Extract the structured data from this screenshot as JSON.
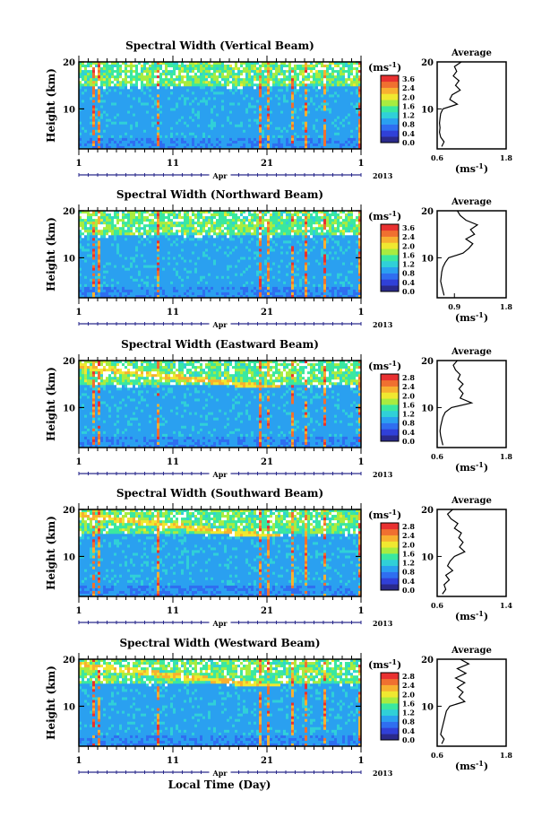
{
  "chart_data": [
    {
      "type": "heatmap",
      "title": "Spectral Width (Vertical Beam)",
      "ylabel": "Height (km)",
      "x_ticks": [
        "1",
        "11",
        "21",
        "1"
      ],
      "month_label": "Apr",
      "year": "2013",
      "ylim": [
        1.5,
        20
      ],
      "y_ticks": [
        "20",
        "10"
      ],
      "colorbar": {
        "unit_label": "(ms-1)",
        "ticks": [
          "3.6",
          "2.4",
          "2.0",
          "1.6",
          "1.2",
          "0.8",
          "0.4",
          "0.0"
        ]
      },
      "average_profile": {
        "title": "Average",
        "xlabel": "(ms-1)",
        "x_ticks": [
          "0.6",
          "1.8"
        ],
        "xlim": [
          0.6,
          1.8
        ],
        "y_ticks": [
          "20",
          "10"
        ],
        "heights": [
          2,
          3,
          4,
          5,
          6,
          7,
          8,
          9,
          10,
          11,
          12,
          13,
          14,
          15,
          16,
          17,
          18,
          19,
          20
        ],
        "values": [
          0.68,
          0.72,
          0.66,
          0.64,
          0.65,
          0.64,
          0.65,
          0.66,
          0.7,
          0.95,
          0.82,
          0.86,
          1.0,
          0.92,
          0.98,
          0.88,
          0.94,
          0.9,
          1.02
        ]
      }
    },
    {
      "type": "heatmap",
      "title": "Spectral Width (Northward Beam)",
      "ylabel": "Height (km)",
      "x_ticks": [
        "1",
        "11",
        "21",
        "1"
      ],
      "month_label": "Apr",
      "year": "2013",
      "ylim": [
        1.5,
        20
      ],
      "y_ticks": [
        "20",
        "10"
      ],
      "colorbar": {
        "unit_label": "(ms-1)",
        "ticks": [
          "3.6",
          "2.4",
          "2.0",
          "1.6",
          "1.2",
          "0.8",
          "0.4",
          "0.0"
        ]
      },
      "average_profile": {
        "title": "Average",
        "xlabel": "(ms-1)",
        "x_ticks": [
          "0.9",
          "1.8"
        ],
        "xlim": [
          0.6,
          1.8
        ],
        "y_ticks": [
          "20",
          "10"
        ],
        "heights": [
          2,
          3,
          4,
          5,
          6,
          7,
          8,
          9,
          10,
          11,
          12,
          13,
          14,
          15,
          16,
          17,
          18,
          19,
          20
        ],
        "values": [
          0.72,
          0.7,
          0.68,
          0.66,
          0.67,
          0.68,
          0.7,
          0.74,
          0.8,
          1.05,
          1.15,
          1.22,
          1.1,
          1.25,
          1.18,
          1.3,
          1.1,
          1.0,
          0.95
        ]
      }
    },
    {
      "type": "heatmap",
      "title": "Spectral Width (Eastward Beam)",
      "ylabel": "Height (km)",
      "x_ticks": [
        "1",
        "11",
        "21",
        "1"
      ],
      "month_label": "Apr",
      "year": "2013",
      "ylim": [
        1.5,
        20
      ],
      "y_ticks": [
        "20",
        "10"
      ],
      "colorbar": {
        "unit_label": "(ms-1)",
        "ticks": [
          "2.8",
          "2.4",
          "2.0",
          "1.6",
          "1.2",
          "0.8",
          "0.4",
          "0.0"
        ]
      },
      "average_profile": {
        "title": "Average",
        "xlabel": "(ms-1)",
        "x_ticks": [
          "0.6",
          "1.8"
        ],
        "xlim": [
          0.6,
          1.8
        ],
        "y_ticks": [
          "20",
          "10"
        ],
        "heights": [
          2,
          3,
          4,
          5,
          6,
          7,
          8,
          9,
          10,
          11,
          12,
          13,
          14,
          15,
          16,
          17,
          18,
          19,
          20
        ],
        "values": [
          0.7,
          0.68,
          0.66,
          0.65,
          0.66,
          0.68,
          0.7,
          0.74,
          0.85,
          1.2,
          1.0,
          1.05,
          0.98,
          1.05,
          0.96,
          1.0,
          0.92,
          0.88,
          0.95
        ]
      }
    },
    {
      "type": "heatmap",
      "title": "Spectral Width (Southward Beam)",
      "ylabel": "Height (km)",
      "x_ticks": [
        "1",
        "11",
        "21",
        "1"
      ],
      "month_label": "Apr",
      "year": "2013",
      "ylim": [
        1.5,
        20
      ],
      "y_ticks": [
        "20",
        "10"
      ],
      "colorbar": {
        "unit_label": "(ms-1)",
        "ticks": [
          "2.8",
          "2.4",
          "2.0",
          "1.6",
          "1.2",
          "0.8",
          "0.4",
          "0.0"
        ]
      },
      "average_profile": {
        "title": "Average",
        "xlabel": "(ms-1)",
        "x_ticks": [
          "0.6",
          "1.4"
        ],
        "xlim": [
          0.6,
          1.4
        ],
        "y_ticks": [
          "20",
          "10"
        ],
        "heights": [
          2,
          3,
          4,
          5,
          6,
          7,
          8,
          9,
          10,
          11,
          12,
          13,
          14,
          15,
          16,
          17,
          18,
          19,
          20
        ],
        "values": [
          0.66,
          0.7,
          0.68,
          0.74,
          0.7,
          0.78,
          0.72,
          0.75,
          0.8,
          0.92,
          0.86,
          0.9,
          0.85,
          0.88,
          0.8,
          0.84,
          0.76,
          0.72,
          0.78
        ]
      }
    },
    {
      "type": "heatmap",
      "title": "Spectral Width (Westward Beam)",
      "ylabel": "Height (km)",
      "x_ticks": [
        "1",
        "11",
        "21",
        "1"
      ],
      "month_label": "Apr",
      "year": "2013",
      "ylim": [
        1.5,
        20
      ],
      "y_ticks": [
        "20",
        "10"
      ],
      "colorbar": {
        "unit_label": "(ms-1)",
        "ticks": [
          "2.8",
          "2.4",
          "2.0",
          "1.6",
          "1.2",
          "0.8",
          "0.4",
          "0.0"
        ]
      },
      "average_profile": {
        "title": "Average",
        "xlabel": "(ms-1)",
        "x_ticks": [
          "0.6",
          "1.8"
        ],
        "xlim": [
          0.6,
          1.8
        ],
        "y_ticks": [
          "20",
          "10"
        ],
        "heights": [
          2,
          3,
          4,
          5,
          6,
          7,
          8,
          9,
          10,
          11,
          12,
          13,
          14,
          15,
          16,
          17,
          18,
          19,
          20
        ],
        "values": [
          0.68,
          0.72,
          0.66,
          0.68,
          0.7,
          0.72,
          0.74,
          0.76,
          0.82,
          1.08,
          0.98,
          1.05,
          0.95,
          1.08,
          0.92,
          1.1,
          0.95,
          1.15,
          1.0
        ]
      }
    }
  ],
  "xlabel": "Local Time (Day)",
  "colors": {
    "colorbar_stops": [
      "#2a2a8c",
      "#3040d8",
      "#2f6ef0",
      "#2aa0f0",
      "#30d0d8",
      "#3ae8a0",
      "#a8ec40",
      "#f0e830",
      "#f8b030",
      "#f07030",
      "#e83030"
    ],
    "line": "#000000"
  }
}
